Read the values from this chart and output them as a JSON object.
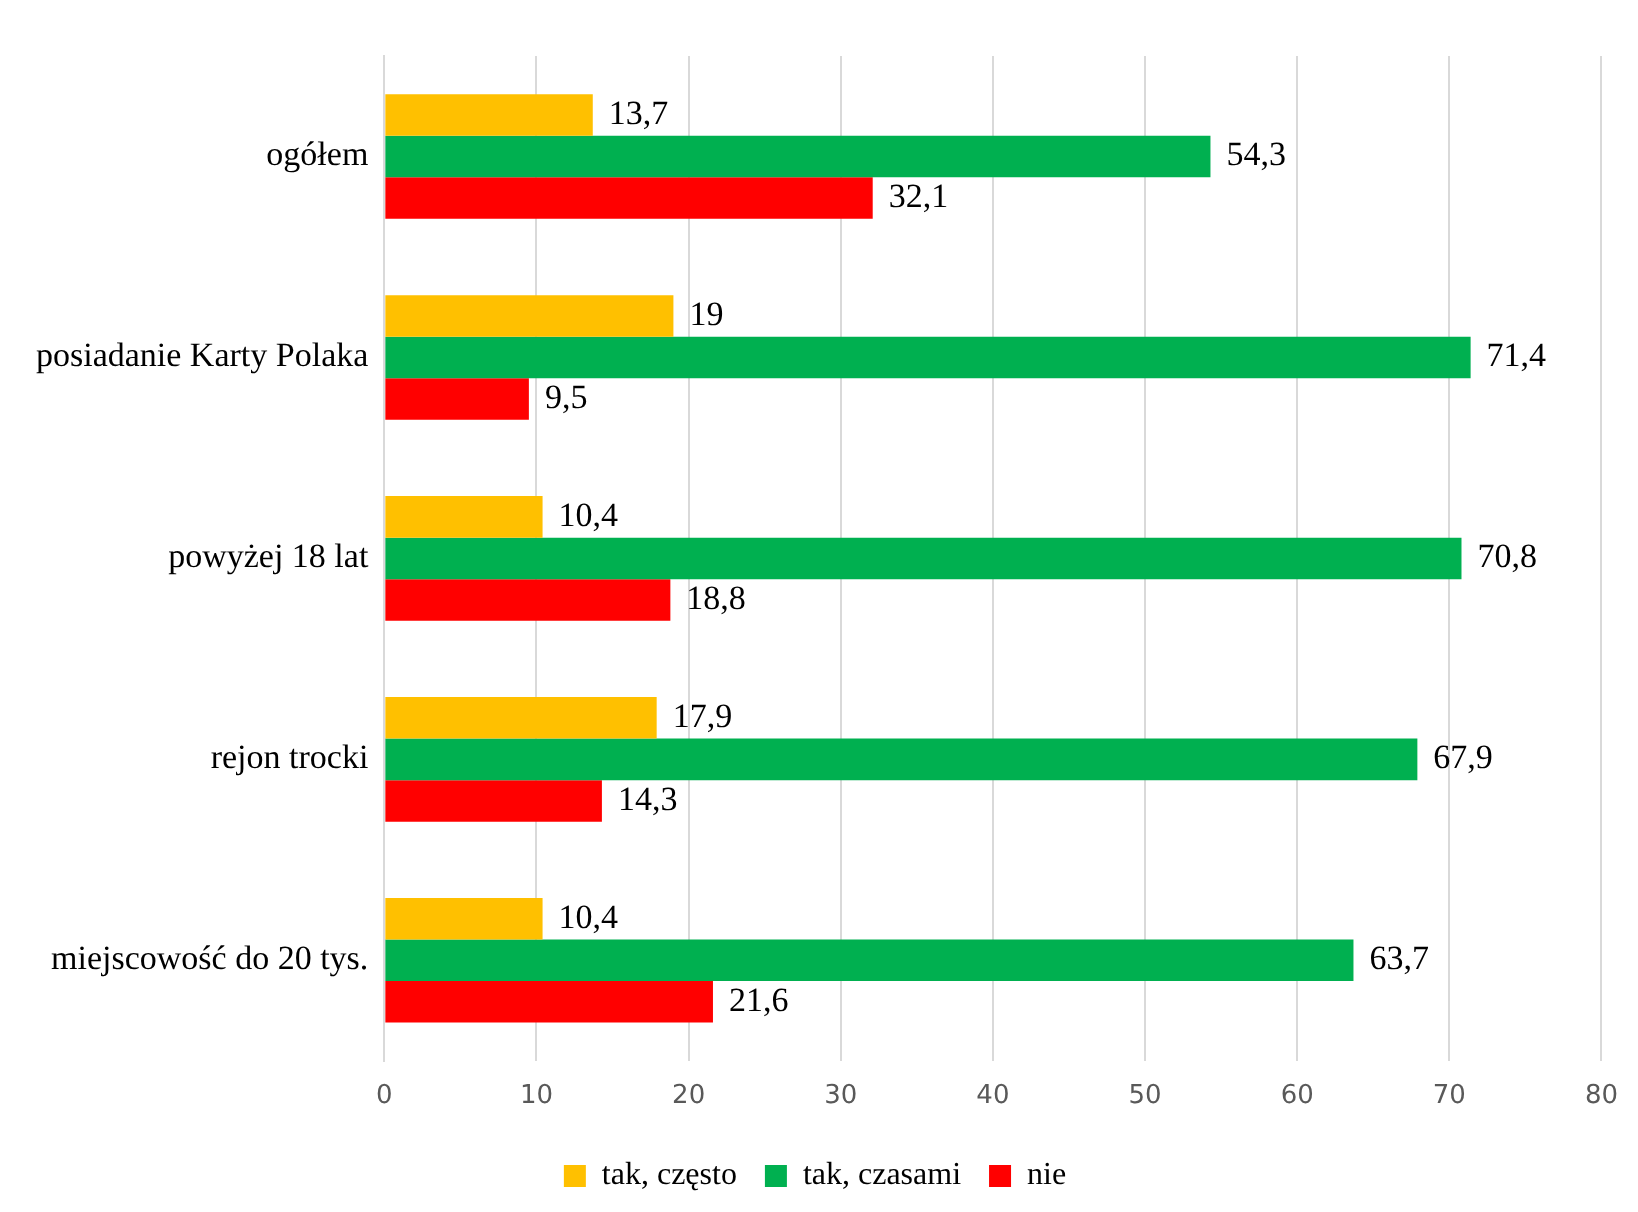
{
  "chart_data": {
    "type": "bar",
    "orientation": "horizontal",
    "categories": [
      "ogółem",
      "posiadanie Karty Polaka",
      "powyżej 18 lat",
      "rejon trocki",
      "miejscowość do 20 tys."
    ],
    "series": [
      {
        "name": "tak, często",
        "color": "#ffc000",
        "values": [
          13.7,
          19,
          10.4,
          17.9,
          10.4
        ],
        "value_labels": [
          "13,7",
          "19",
          "10,4",
          "17,9",
          "10,4"
        ]
      },
      {
        "name": "tak, czasami",
        "color": "#00b050",
        "values": [
          54.3,
          71.4,
          70.8,
          67.9,
          63.7
        ],
        "value_labels": [
          "54,3",
          "71,4",
          "70,8",
          "67,9",
          "63,7"
        ]
      },
      {
        "name": "nie",
        "color": "#ff0000",
        "values": [
          32.1,
          9.5,
          18.8,
          14.3,
          21.6
        ],
        "value_labels": [
          "32,1",
          "9,5",
          "18,8",
          "14,3",
          "21,6"
        ]
      }
    ],
    "xlim": [
      0,
      80
    ],
    "xticks": [
      0,
      10,
      20,
      30,
      40,
      50,
      60,
      70,
      80
    ],
    "grid": "x",
    "legend": "bottom"
  }
}
